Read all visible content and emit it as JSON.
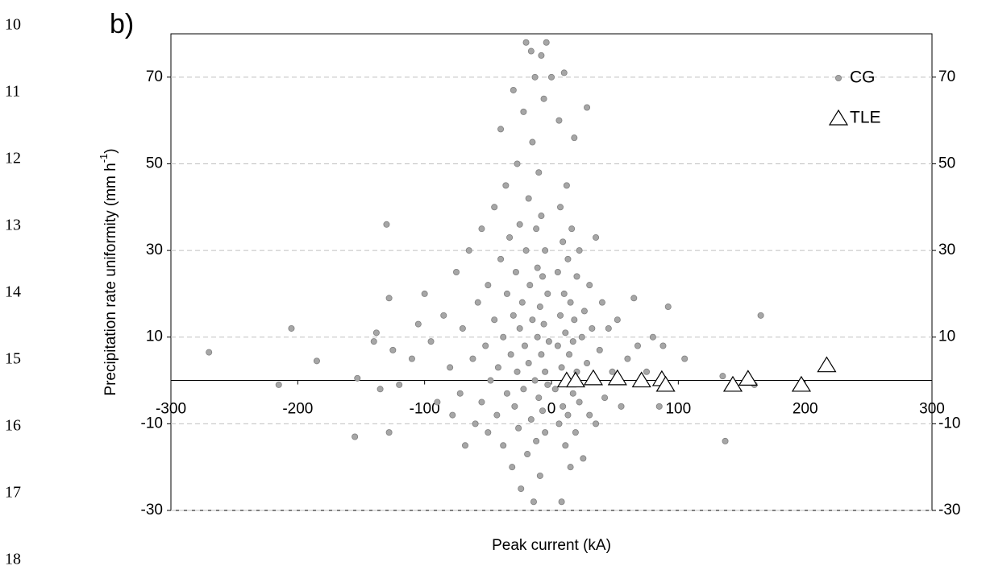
{
  "line_numbers": [
    10,
    11,
    12,
    13,
    14,
    15,
    16,
    17,
    18
  ],
  "chart_data": {
    "type": "scatter",
    "panel_label": "b)",
    "x_label": "Peak current (kA)",
    "y_label": "Precipitation rate uniformity (mm h",
    "y_label_superscript": "-1",
    "y_label_end": ")",
    "xlim": [
      -300,
      300
    ],
    "xticks": [
      -300,
      -200,
      -100,
      0,
      100,
      200,
      300
    ],
    "ylim": [
      -30,
      80
    ],
    "yticks": [
      -30,
      -10,
      10,
      30,
      50,
      70
    ],
    "y2lim": [
      -30,
      80
    ],
    "y2ticks": [
      -30,
      -10,
      10,
      30,
      50,
      70
    ],
    "grid": true,
    "legend": "upper right",
    "series": [
      {
        "name": "CG",
        "color": "#a6a6a6",
        "marker": "circle",
        "x": [
          -270,
          -215,
          -205,
          -185,
          -155,
          -153,
          -140,
          -138,
          -135,
          -130,
          -128,
          -128,
          -125,
          -120,
          -110,
          -105,
          -100,
          -95,
          -90,
          -85,
          -80,
          -78,
          -75,
          -72,
          -70,
          -68,
          -65,
          -62,
          -60,
          -58,
          -55,
          -55,
          -52,
          -50,
          -50,
          -48,
          -45,
          -45,
          -43,
          -42,
          -40,
          -40,
          -38,
          -38,
          -36,
          -35,
          -35,
          -33,
          -32,
          -31,
          -30,
          -30,
          -29,
          -28,
          -27,
          -27,
          -26,
          -25,
          -25,
          -24,
          -23,
          -22,
          -22,
          -21,
          -20,
          -20,
          -19,
          -18,
          -18,
          -17,
          -16,
          -16,
          -15,
          -15,
          -14,
          -13,
          -13,
          -12,
          -12,
          -11,
          -11,
          -10,
          -10,
          -9,
          -9,
          -8,
          -8,
          -8,
          -7,
          -7,
          -6,
          -6,
          -5,
          -5,
          -5,
          -4,
          -3,
          -3,
          -2,
          0,
          3,
          5,
          5,
          6,
          6,
          7,
          7,
          8,
          8,
          9,
          9,
          10,
          10,
          11,
          11,
          12,
          12,
          13,
          13,
          14,
          15,
          15,
          16,
          17,
          17,
          18,
          18,
          19,
          20,
          20,
          22,
          22,
          24,
          25,
          26,
          28,
          28,
          30,
          30,
          32,
          33,
          35,
          35,
          38,
          40,
          42,
          45,
          48,
          52,
          55,
          60,
          65,
          68,
          75,
          80,
          85,
          88,
          92,
          105,
          135,
          137,
          160,
          165
        ],
        "values": [
          6.5,
          -1,
          12,
          4.5,
          -13,
          0.5,
          9,
          11,
          -2,
          36,
          19,
          -12,
          7,
          -1,
          5,
          13,
          20,
          9,
          -5,
          15,
          3,
          -8,
          25,
          -3,
          12,
          -15,
          30,
          5,
          -10,
          18,
          35,
          -5,
          8,
          22,
          -12,
          0,
          40,
          14,
          -8,
          3,
          28,
          58,
          -15,
          10,
          45,
          20,
          -3,
          33,
          6,
          -20,
          15,
          67,
          -6,
          25,
          50,
          2,
          -11,
          36,
          12,
          -25,
          18,
          62,
          -2,
          8,
          30,
          78,
          -17,
          42,
          4,
          22,
          -9,
          76,
          55,
          14,
          -28,
          70,
          0,
          35,
          -14,
          26,
          10,
          48,
          -4,
          17,
          -22,
          38,
          6,
          75,
          24,
          -7,
          65,
          13,
          30,
          -12,
          2,
          78,
          20,
          -1,
          9,
          70,
          -2,
          25,
          8,
          -10,
          60,
          40,
          15,
          -28,
          3,
          32,
          -6,
          71,
          20,
          11,
          -15,
          45,
          0,
          28,
          -8,
          6,
          18,
          -20,
          35,
          -3,
          9,
          14,
          56,
          -12,
          24,
          2,
          -5,
          30,
          10,
          -18,
          16,
          63,
          4,
          -8,
          22,
          12,
          1,
          33,
          -10,
          7,
          18,
          -4,
          12,
          2,
          14,
          -6,
          5,
          19,
          8,
          2,
          10,
          -6,
          8,
          17,
          5,
          1,
          -14,
          -1,
          15
        ]
      },
      {
        "name": "TLE",
        "color": "#000000",
        "marker": "triangle",
        "x": [
          12,
          19,
          33,
          52,
          71,
          87,
          90,
          143,
          155,
          197,
          217
        ],
        "values": [
          0,
          0,
          0.5,
          0.5,
          0,
          0.3,
          -1,
          -1,
          0.4,
          -1,
          3.5
        ]
      }
    ]
  }
}
